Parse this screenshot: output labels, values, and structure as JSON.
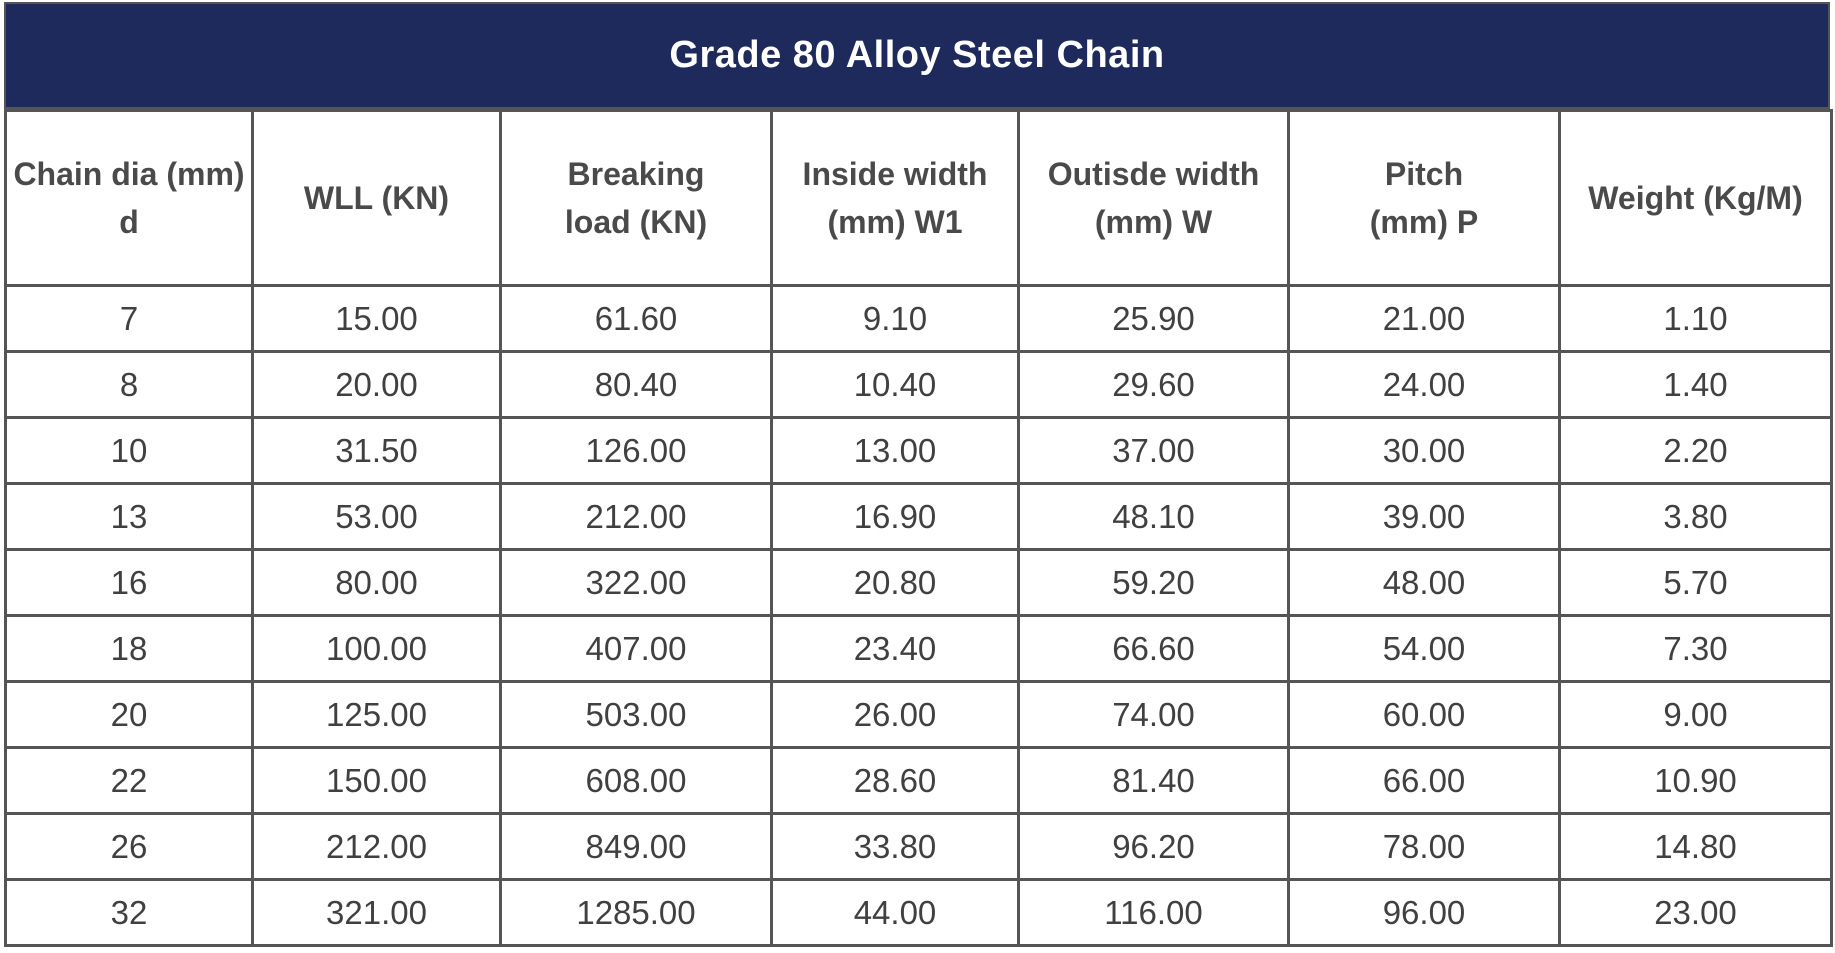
{
  "title": "Grade 80 Alloy Steel Chain",
  "colors": {
    "title_background": "#1f2a5c",
    "title_text": "#ffffff",
    "grid_lines": "#555555",
    "cell_text": "#404040"
  },
  "columns": [
    {
      "line1": "Chain dia (mm)",
      "line2": "d"
    },
    {
      "line1": "WLL (KN)",
      "line2": ""
    },
    {
      "line1": "Breaking",
      "line2": "load (KN)"
    },
    {
      "line1": "Inside width",
      "line2": "(mm)  W1"
    },
    {
      "line1": "Outisde width",
      "line2": "(mm) W"
    },
    {
      "line1": "Pitch",
      "line2": "(mm)  P"
    },
    {
      "line1": "Weight (Kg/M)",
      "line2": ""
    }
  ],
  "rows": [
    [
      "7",
      "15.00",
      "61.60",
      "9.10",
      "25.90",
      "21.00",
      "1.10"
    ],
    [
      "8",
      "20.00",
      "80.40",
      "10.40",
      "29.60",
      "24.00",
      "1.40"
    ],
    [
      "10",
      "31.50",
      "126.00",
      "13.00",
      "37.00",
      "30.00",
      "2.20"
    ],
    [
      "13",
      "53.00",
      "212.00",
      "16.90",
      "48.10",
      "39.00",
      "3.80"
    ],
    [
      "16",
      "80.00",
      "322.00",
      "20.80",
      "59.20",
      "48.00",
      "5.70"
    ],
    [
      "18",
      "100.00",
      "407.00",
      "23.40",
      "66.60",
      "54.00",
      "7.30"
    ],
    [
      "20",
      "125.00",
      "503.00",
      "26.00",
      "74.00",
      "60.00",
      "9.00"
    ],
    [
      "22",
      "150.00",
      "608.00",
      "28.60",
      "81.40",
      "66.00",
      "10.90"
    ],
    [
      "26",
      "212.00",
      "849.00",
      "33.80",
      "96.20",
      "78.00",
      "14.80"
    ],
    [
      "32",
      "321.00",
      "1285.00",
      "44.00",
      "116.00",
      "96.00",
      "23.00"
    ]
  ]
}
